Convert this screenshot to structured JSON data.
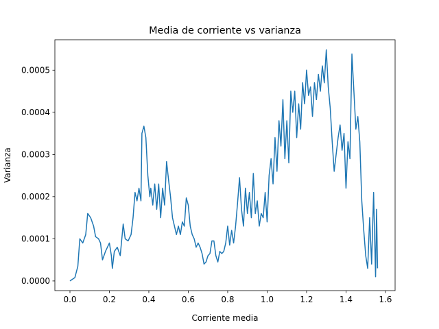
{
  "chart_data": {
    "type": "line",
    "title": "Media de corriente vs varianza",
    "x_label": "Corriente media",
    "y_label": "Varianza",
    "xlim": [
      -0.0765,
      1.649
    ],
    "ylim": [
      -2.29e-05,
      0.000572
    ],
    "xticks": [
      {
        "value": 0,
        "label": "0.0"
      },
      0.2,
      0.4,
      0.6,
      0.8,
      {
        "value": 1,
        "label": "1.0"
      },
      1.2,
      1.4,
      1.6
    ],
    "yticks": [
      {
        "value": 0,
        "label": "0.0000"
      },
      {
        "value": 0.0001,
        "label": "0.0001"
      },
      {
        "value": 0.0002,
        "label": "0.0002"
      },
      {
        "value": 0.0003,
        "label": "0.0003"
      },
      {
        "value": 0.0004,
        "label": "0.0004"
      },
      {
        "value": 0.0005,
        "label": "0.0005"
      }
    ],
    "series": [
      {
        "color": "#1f77b4",
        "x": [
          0.0,
          0.025,
          0.04,
          0.05,
          0.065,
          0.08,
          0.09,
          0.105,
          0.12,
          0.13,
          0.145,
          0.155,
          0.165,
          0.18,
          0.19,
          0.2,
          0.21,
          0.215,
          0.225,
          0.24,
          0.255,
          0.27,
          0.28,
          0.295,
          0.31,
          0.32,
          0.33,
          0.34,
          0.35,
          0.36,
          0.365,
          0.375,
          0.385,
          0.395,
          0.405,
          0.41,
          0.42,
          0.43,
          0.44,
          0.45,
          0.46,
          0.47,
          0.48,
          0.49,
          0.5,
          0.51,
          0.52,
          0.53,
          0.54,
          0.55,
          0.56,
          0.57,
          0.58,
          0.59,
          0.6,
          0.61,
          0.62,
          0.63,
          0.64,
          0.65,
          0.66,
          0.67,
          0.68,
          0.69,
          0.7,
          0.71,
          0.72,
          0.73,
          0.74,
          0.75,
          0.76,
          0.77,
          0.78,
          0.79,
          0.8,
          0.81,
          0.82,
          0.83,
          0.84,
          0.85,
          0.86,
          0.87,
          0.88,
          0.89,
          0.9,
          0.91,
          0.92,
          0.93,
          0.94,
          0.95,
          0.96,
          0.97,
          0.98,
          0.99,
          1.0,
          1.01,
          1.02,
          1.03,
          1.04,
          1.05,
          1.06,
          1.07,
          1.08,
          1.09,
          1.1,
          1.11,
          1.12,
          1.13,
          1.14,
          1.15,
          1.16,
          1.17,
          1.18,
          1.19,
          1.2,
          1.21,
          1.22,
          1.23,
          1.24,
          1.25,
          1.26,
          1.27,
          1.28,
          1.29,
          1.3,
          1.31,
          1.32,
          1.33,
          1.34,
          1.35,
          1.36,
          1.37,
          1.38,
          1.39,
          1.4,
          1.41,
          1.42,
          1.43,
          1.44,
          1.45,
          1.46,
          1.47,
          1.48,
          1.49,
          1.5,
          1.51,
          1.52,
          1.53,
          1.54,
          1.55,
          1.555,
          1.56
        ],
        "values": [
          0.0,
          8e-06,
          3.5e-05,
          0.0001,
          9e-05,
          0.00011,
          0.00016,
          0.00015,
          0.00013,
          0.000105,
          0.0001,
          9e-05,
          5e-05,
          7e-05,
          8e-05,
          9e-05,
          6e-05,
          3e-05,
          7e-05,
          8e-05,
          6e-05,
          0.000135,
          0.0001,
          9.5e-05,
          0.00011,
          0.00015,
          0.00021,
          0.00019,
          0.00022,
          0.00019,
          0.00035,
          0.000367,
          0.00034,
          0.00025,
          0.0002,
          0.00022,
          0.00018,
          0.00023,
          0.00017,
          0.00023,
          0.00015,
          0.00022,
          0.00018,
          0.000283,
          0.00024,
          0.0002,
          0.00015,
          0.00013,
          0.00011,
          0.00013,
          0.00011,
          0.00014,
          0.00013,
          0.000197,
          0.00018,
          0.00013,
          0.00011,
          0.0001,
          8e-05,
          9e-05,
          8e-05,
          6.5e-05,
          4e-05,
          4.5e-05,
          6e-05,
          6.5e-05,
          9.5e-05,
          9.5e-05,
          6e-05,
          4.5e-05,
          7e-05,
          6.5e-05,
          7e-05,
          9e-05,
          0.00013,
          8.5e-05,
          0.00012,
          9e-05,
          0.00013,
          0.000185,
          0.000245,
          0.00017,
          0.00013,
          0.00022,
          0.00016,
          0.00021,
          0.00015,
          0.000255,
          0.00016,
          0.00019,
          0.00013,
          0.00016,
          0.00015,
          0.00021,
          0.00014,
          0.00025,
          0.00029,
          0.00023,
          0.00034,
          0.00026,
          0.00038,
          0.00032,
          0.00043,
          0.00029,
          0.00038,
          0.00028,
          0.00045,
          0.0004,
          0.00045,
          0.00034,
          0.00042,
          0.00036,
          0.00047,
          0.00042,
          0.0005,
          0.00044,
          0.00046,
          0.00039,
          0.00047,
          0.00043,
          0.00049,
          0.00045,
          0.00051,
          0.00047,
          0.000548,
          0.00046,
          0.00041,
          0.00033,
          0.00026,
          0.0003,
          0.00034,
          0.00037,
          0.00031,
          0.00035,
          0.00022,
          0.00033,
          0.00029,
          0.000538,
          0.00045,
          0.00036,
          0.00039,
          0.00033,
          0.00019,
          0.00012,
          6e-05,
          3e-05,
          0.00015,
          4e-05,
          0.00021,
          1e-05,
          0.00017,
          3e-05
        ]
      }
    ]
  }
}
